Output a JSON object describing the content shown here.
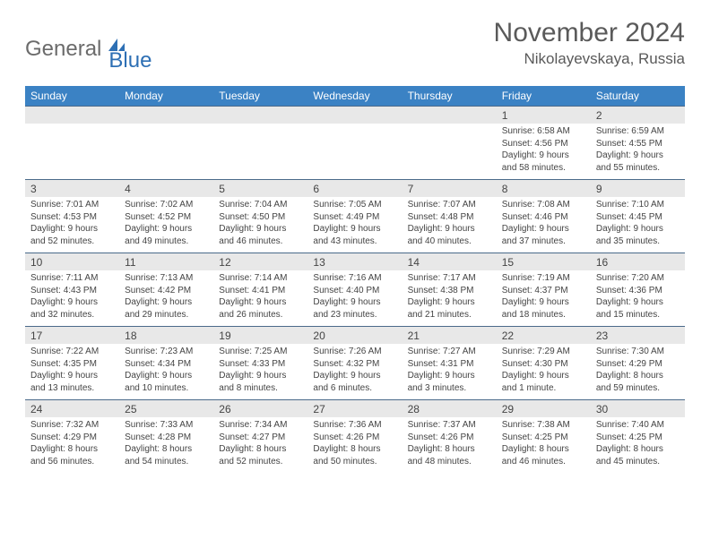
{
  "logo": {
    "text1": "General",
    "text2": "Blue"
  },
  "title": "November 2024",
  "location": "Nikolayevskaya, Russia",
  "colors": {
    "header_bg": "#3b82c4",
    "header_text": "#ffffff",
    "num_bg": "#e8e8e8",
    "border": "#4a6a8a",
    "logo_gray": "#6b6b6b",
    "logo_blue": "#2d6fb4"
  },
  "daynames": [
    "Sunday",
    "Monday",
    "Tuesday",
    "Wednesday",
    "Thursday",
    "Friday",
    "Saturday"
  ],
  "weeks": [
    {
      "nums": [
        "",
        "",
        "",
        "",
        "",
        "1",
        "2"
      ],
      "cells": [
        {
          "sunrise": "",
          "sunset": "",
          "daylight1": "",
          "daylight2": ""
        },
        {
          "sunrise": "",
          "sunset": "",
          "daylight1": "",
          "daylight2": ""
        },
        {
          "sunrise": "",
          "sunset": "",
          "daylight1": "",
          "daylight2": ""
        },
        {
          "sunrise": "",
          "sunset": "",
          "daylight1": "",
          "daylight2": ""
        },
        {
          "sunrise": "",
          "sunset": "",
          "daylight1": "",
          "daylight2": ""
        },
        {
          "sunrise": "Sunrise: 6:58 AM",
          "sunset": "Sunset: 4:56 PM",
          "daylight1": "Daylight: 9 hours",
          "daylight2": "and 58 minutes."
        },
        {
          "sunrise": "Sunrise: 6:59 AM",
          "sunset": "Sunset: 4:55 PM",
          "daylight1": "Daylight: 9 hours",
          "daylight2": "and 55 minutes."
        }
      ]
    },
    {
      "nums": [
        "3",
        "4",
        "5",
        "6",
        "7",
        "8",
        "9"
      ],
      "cells": [
        {
          "sunrise": "Sunrise: 7:01 AM",
          "sunset": "Sunset: 4:53 PM",
          "daylight1": "Daylight: 9 hours",
          "daylight2": "and 52 minutes."
        },
        {
          "sunrise": "Sunrise: 7:02 AM",
          "sunset": "Sunset: 4:52 PM",
          "daylight1": "Daylight: 9 hours",
          "daylight2": "and 49 minutes."
        },
        {
          "sunrise": "Sunrise: 7:04 AM",
          "sunset": "Sunset: 4:50 PM",
          "daylight1": "Daylight: 9 hours",
          "daylight2": "and 46 minutes."
        },
        {
          "sunrise": "Sunrise: 7:05 AM",
          "sunset": "Sunset: 4:49 PM",
          "daylight1": "Daylight: 9 hours",
          "daylight2": "and 43 minutes."
        },
        {
          "sunrise": "Sunrise: 7:07 AM",
          "sunset": "Sunset: 4:48 PM",
          "daylight1": "Daylight: 9 hours",
          "daylight2": "and 40 minutes."
        },
        {
          "sunrise": "Sunrise: 7:08 AM",
          "sunset": "Sunset: 4:46 PM",
          "daylight1": "Daylight: 9 hours",
          "daylight2": "and 37 minutes."
        },
        {
          "sunrise": "Sunrise: 7:10 AM",
          "sunset": "Sunset: 4:45 PM",
          "daylight1": "Daylight: 9 hours",
          "daylight2": "and 35 minutes."
        }
      ]
    },
    {
      "nums": [
        "10",
        "11",
        "12",
        "13",
        "14",
        "15",
        "16"
      ],
      "cells": [
        {
          "sunrise": "Sunrise: 7:11 AM",
          "sunset": "Sunset: 4:43 PM",
          "daylight1": "Daylight: 9 hours",
          "daylight2": "and 32 minutes."
        },
        {
          "sunrise": "Sunrise: 7:13 AM",
          "sunset": "Sunset: 4:42 PM",
          "daylight1": "Daylight: 9 hours",
          "daylight2": "and 29 minutes."
        },
        {
          "sunrise": "Sunrise: 7:14 AM",
          "sunset": "Sunset: 4:41 PM",
          "daylight1": "Daylight: 9 hours",
          "daylight2": "and 26 minutes."
        },
        {
          "sunrise": "Sunrise: 7:16 AM",
          "sunset": "Sunset: 4:40 PM",
          "daylight1": "Daylight: 9 hours",
          "daylight2": "and 23 minutes."
        },
        {
          "sunrise": "Sunrise: 7:17 AM",
          "sunset": "Sunset: 4:38 PM",
          "daylight1": "Daylight: 9 hours",
          "daylight2": "and 21 minutes."
        },
        {
          "sunrise": "Sunrise: 7:19 AM",
          "sunset": "Sunset: 4:37 PM",
          "daylight1": "Daylight: 9 hours",
          "daylight2": "and 18 minutes."
        },
        {
          "sunrise": "Sunrise: 7:20 AM",
          "sunset": "Sunset: 4:36 PM",
          "daylight1": "Daylight: 9 hours",
          "daylight2": "and 15 minutes."
        }
      ]
    },
    {
      "nums": [
        "17",
        "18",
        "19",
        "20",
        "21",
        "22",
        "23"
      ],
      "cells": [
        {
          "sunrise": "Sunrise: 7:22 AM",
          "sunset": "Sunset: 4:35 PM",
          "daylight1": "Daylight: 9 hours",
          "daylight2": "and 13 minutes."
        },
        {
          "sunrise": "Sunrise: 7:23 AM",
          "sunset": "Sunset: 4:34 PM",
          "daylight1": "Daylight: 9 hours",
          "daylight2": "and 10 minutes."
        },
        {
          "sunrise": "Sunrise: 7:25 AM",
          "sunset": "Sunset: 4:33 PM",
          "daylight1": "Daylight: 9 hours",
          "daylight2": "and 8 minutes."
        },
        {
          "sunrise": "Sunrise: 7:26 AM",
          "sunset": "Sunset: 4:32 PM",
          "daylight1": "Daylight: 9 hours",
          "daylight2": "and 6 minutes."
        },
        {
          "sunrise": "Sunrise: 7:27 AM",
          "sunset": "Sunset: 4:31 PM",
          "daylight1": "Daylight: 9 hours",
          "daylight2": "and 3 minutes."
        },
        {
          "sunrise": "Sunrise: 7:29 AM",
          "sunset": "Sunset: 4:30 PM",
          "daylight1": "Daylight: 9 hours",
          "daylight2": "and 1 minute."
        },
        {
          "sunrise": "Sunrise: 7:30 AM",
          "sunset": "Sunset: 4:29 PM",
          "daylight1": "Daylight: 8 hours",
          "daylight2": "and 59 minutes."
        }
      ]
    },
    {
      "nums": [
        "24",
        "25",
        "26",
        "27",
        "28",
        "29",
        "30"
      ],
      "cells": [
        {
          "sunrise": "Sunrise: 7:32 AM",
          "sunset": "Sunset: 4:29 PM",
          "daylight1": "Daylight: 8 hours",
          "daylight2": "and 56 minutes."
        },
        {
          "sunrise": "Sunrise: 7:33 AM",
          "sunset": "Sunset: 4:28 PM",
          "daylight1": "Daylight: 8 hours",
          "daylight2": "and 54 minutes."
        },
        {
          "sunrise": "Sunrise: 7:34 AM",
          "sunset": "Sunset: 4:27 PM",
          "daylight1": "Daylight: 8 hours",
          "daylight2": "and 52 minutes."
        },
        {
          "sunrise": "Sunrise: 7:36 AM",
          "sunset": "Sunset: 4:26 PM",
          "daylight1": "Daylight: 8 hours",
          "daylight2": "and 50 minutes."
        },
        {
          "sunrise": "Sunrise: 7:37 AM",
          "sunset": "Sunset: 4:26 PM",
          "daylight1": "Daylight: 8 hours",
          "daylight2": "and 48 minutes."
        },
        {
          "sunrise": "Sunrise: 7:38 AM",
          "sunset": "Sunset: 4:25 PM",
          "daylight1": "Daylight: 8 hours",
          "daylight2": "and 46 minutes."
        },
        {
          "sunrise": "Sunrise: 7:40 AM",
          "sunset": "Sunset: 4:25 PM",
          "daylight1": "Daylight: 8 hours",
          "daylight2": "and 45 minutes."
        }
      ]
    }
  ]
}
